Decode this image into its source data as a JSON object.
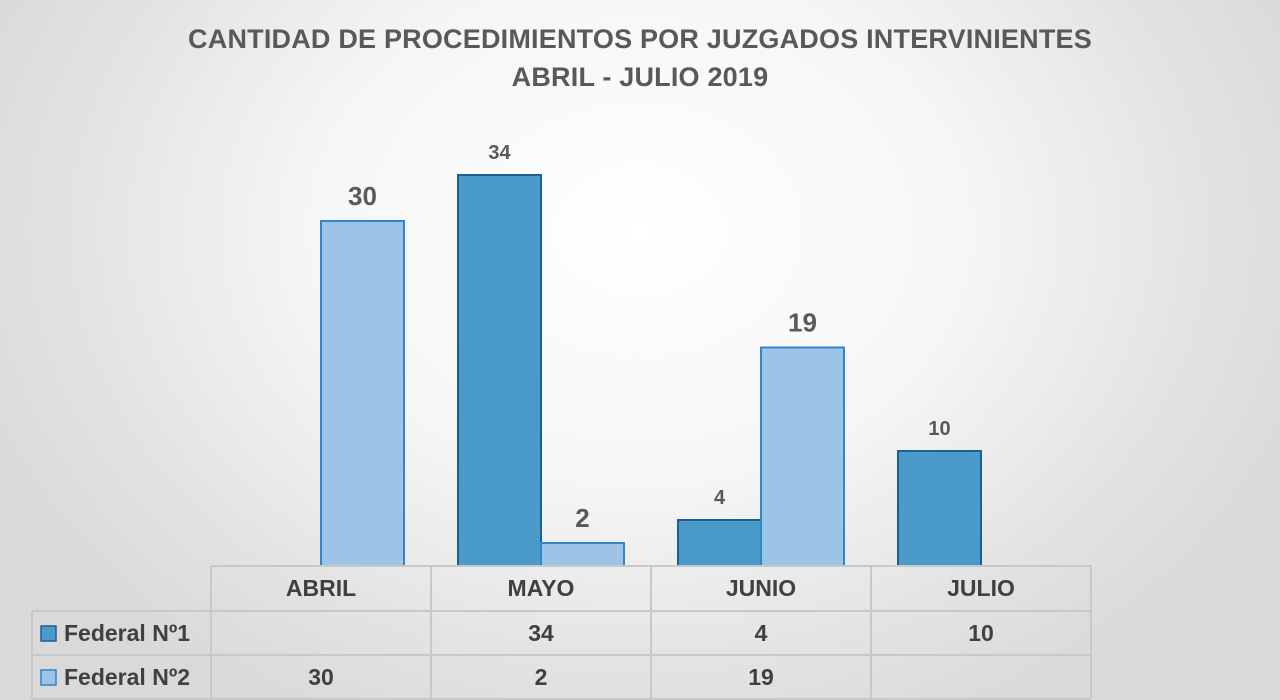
{
  "colors": {
    "federal1_fill": "#4a9bc9",
    "federal1_stroke": "#1f5f8f",
    "federal2_fill": "#9dc3e6",
    "federal2_stroke": "#2f86c8",
    "grid": "#c8c8c8",
    "text": "#595959"
  },
  "chart_data": {
    "type": "bar",
    "title": "CANTIDAD DE PROCEDIMIENTOS POR JUZGADOS INTERVINIENTES",
    "subtitle": "ABRIL - JULIO 2019",
    "categories": [
      "ABRIL",
      "MAYO",
      "JUNIO",
      "JULIO"
    ],
    "series": [
      {
        "name": "Federal Nº1",
        "values": [
          null,
          34,
          4,
          10
        ]
      },
      {
        "name": "Federal Nº2",
        "values": [
          30,
          2,
          19,
          null
        ]
      }
    ],
    "ylim": [
      0,
      40
    ],
    "grid": false,
    "legend": "data-table-left",
    "data_table": true
  }
}
